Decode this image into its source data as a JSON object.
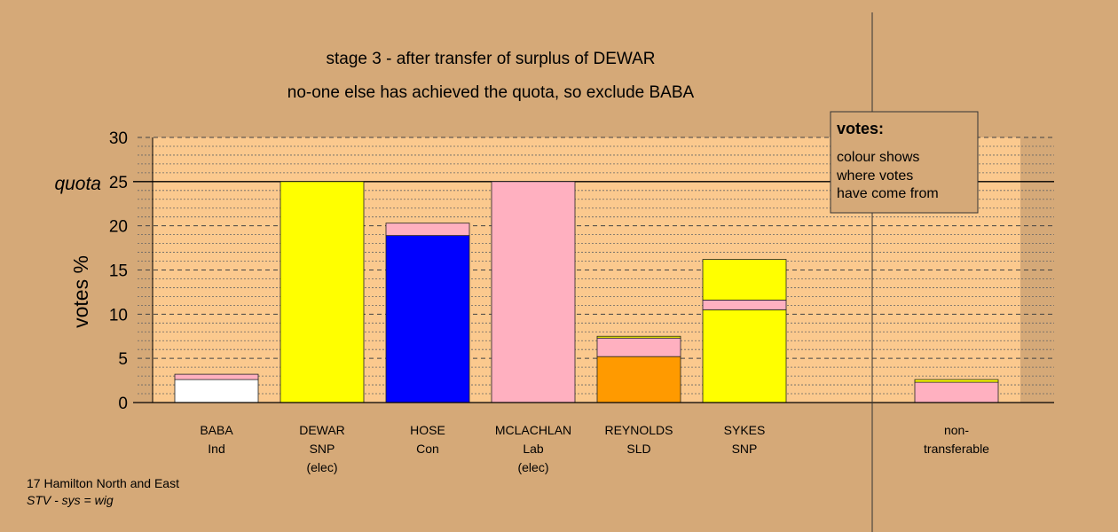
{
  "chart_data": {
    "type": "bar",
    "stacked": true,
    "title": "stage 3 - after transfer of surplus of DEWAR",
    "subtitle": "no-one else has achieved the quota, so exclude BABA",
    "ylabel": "votes %",
    "ylim": [
      0,
      30
    ],
    "yticks": [
      0,
      5,
      10,
      15,
      20,
      25,
      30
    ],
    "quota": 25,
    "quota_label": "quota",
    "grid": true,
    "legend_placement": "top-right",
    "legend": {
      "title": "votes:",
      "lines": [
        "colour shows",
        "where votes",
        "have come from"
      ]
    },
    "colors": {
      "background": "#d5a978",
      "plot_background": "#fbc98e",
      "Ind": "#ffffff",
      "SNP": "#ffff00",
      "Con": "#0000ff",
      "Lab": "#ffb0c0",
      "SLD": "#ff9a00"
    },
    "categories": [
      {
        "lines": [
          "BABA",
          "Ind"
        ],
        "segments": [
          {
            "source": "Ind",
            "value": 2.6
          },
          {
            "source": "Lab",
            "value": 0.6
          }
        ]
      },
      {
        "lines": [
          "DEWAR",
          "SNP",
          "(elec)"
        ],
        "segments": [
          {
            "source": "SNP",
            "value": 25.0
          }
        ]
      },
      {
        "lines": [
          "HOSE",
          "Con"
        ],
        "segments": [
          {
            "source": "Con",
            "value": 18.9
          },
          {
            "source": "Lab",
            "value": 1.4
          }
        ]
      },
      {
        "lines": [
          "MCLACHLAN",
          "Lab",
          "(elec)"
        ],
        "segments": [
          {
            "source": "Lab",
            "value": 25.0
          }
        ]
      },
      {
        "lines": [
          "REYNOLDS",
          "SLD"
        ],
        "segments": [
          {
            "source": "SLD",
            "value": 5.2
          },
          {
            "source": "Lab",
            "value": 2.1
          },
          {
            "source": "SNP",
            "value": 0.2
          }
        ]
      },
      {
        "lines": [
          "SYKES",
          "SNP"
        ],
        "segments": [
          {
            "source": "SNP",
            "value": 10.5
          },
          {
            "source": "Lab",
            "value": 1.1
          },
          {
            "source": "SNP",
            "value": 4.6
          }
        ]
      },
      {
        "lines": [
          "non-",
          "transferable"
        ],
        "segments": [
          {
            "source": "Lab",
            "value": 2.3
          },
          {
            "source": "SNP",
            "value": 0.3
          }
        ]
      }
    ]
  },
  "footer": {
    "constituency": "17 Hamilton North and East",
    "system": "STV - sys = wig"
  }
}
